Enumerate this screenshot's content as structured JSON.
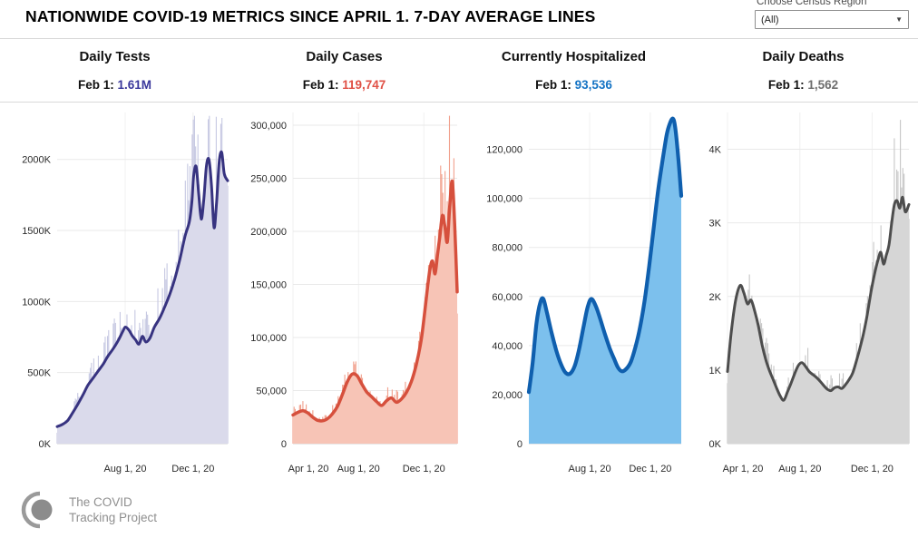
{
  "header": {
    "title": "NATIONWIDE COVID-19 METRICS SINCE APRIL 1. 7-DAY AVERAGE LINES",
    "region_filter": {
      "label": "Choose Census Region",
      "value": "(All)"
    }
  },
  "footer": {
    "logo_line1": "The COVID",
    "logo_line2": "Tracking Project"
  },
  "colors": {
    "separator": "#d9d9d9",
    "axis_text": "#2b2b2b",
    "grid": "#e9e9e9",
    "baseline": "#cfcfcf"
  },
  "chart_data": [
    {
      "type": "area",
      "title": "Daily Tests",
      "annotation_label": "Feb 1:",
      "annotation_value": "1.61M",
      "value_color": "#39379b",
      "line_color": "#373380",
      "fill_color": "#dadaeb",
      "bar_color": "#c6c8e2",
      "unit": "tests (thousands)",
      "ylim": [
        0,
        2330
      ],
      "y_ticks": [
        {
          "v": 0,
          "label": "0K"
        },
        {
          "v": 500,
          "label": "500K"
        },
        {
          "v": 1000,
          "label": "1000K"
        },
        {
          "v": 1500,
          "label": "1500K"
        },
        {
          "v": 2000,
          "label": "2000K"
        }
      ],
      "x_ticks": [
        {
          "f": 0.399,
          "label": "Aug 1, 20"
        },
        {
          "f": 0.797,
          "label": "Dec 1, 20"
        }
      ],
      "daily_bars": true,
      "spikes": [
        {
          "f": 0.8,
          "v": 2280
        },
        {
          "f": 0.935,
          "v": 2300
        },
        {
          "f": 0.96,
          "v": 2250
        }
      ],
      "series": {
        "name": "7-day average",
        "x": [
          0,
          0.03,
          0.06,
          0.09,
          0.12,
          0.15,
          0.18,
          0.21,
          0.24,
          0.27,
          0.3,
          0.33,
          0.36,
          0.385,
          0.4,
          0.42,
          0.44,
          0.46,
          0.48,
          0.5,
          0.52,
          0.545,
          0.57,
          0.6,
          0.63,
          0.66,
          0.69,
          0.72,
          0.75,
          0.775,
          0.79,
          0.8,
          0.815,
          0.83,
          0.845,
          0.86,
          0.875,
          0.89,
          0.905,
          0.92,
          0.935,
          0.95,
          0.965,
          0.98,
          1.0
        ],
        "y": [
          120,
          135,
          160,
          215,
          275,
          340,
          410,
          460,
          510,
          560,
          620,
          670,
          730,
          790,
          820,
          800,
          760,
          730,
          700,
          755,
          715,
          745,
          820,
          880,
          960,
          1050,
          1160,
          1300,
          1460,
          1560,
          1700,
          1880,
          1950,
          1760,
          1580,
          1720,
          1950,
          2000,
          1820,
          1520,
          1700,
          1980,
          2050,
          1900,
          1850
        ]
      }
    },
    {
      "type": "area",
      "title": "Daily Cases",
      "annotation_label": "Feb 1:",
      "annotation_value": "119,747",
      "value_color": "#e05045",
      "line_color": "#d6503d",
      "fill_color": "#f7c4b6",
      "bar_color": "#f1a08c",
      "unit": "cases",
      "ylim": [
        0,
        312000
      ],
      "y_ticks": [
        {
          "v": 0,
          "label": "0"
        },
        {
          "v": 50000,
          "label": "50,000"
        },
        {
          "v": 100000,
          "label": "100,000"
        },
        {
          "v": 150000,
          "label": "150,000"
        },
        {
          "v": 200000,
          "label": "200,000"
        },
        {
          "v": 250000,
          "label": "250,000"
        },
        {
          "v": 300000,
          "label": "300,000"
        }
      ],
      "x_ticks": [
        {
          "f": 0.0,
          "label": "Apr 1, 20"
        },
        {
          "f": 0.399,
          "label": "Aug 1, 20"
        },
        {
          "f": 0.797,
          "label": "Dec 1, 20"
        }
      ],
      "daily_bars": true,
      "spikes": [
        {
          "f": 0.955,
          "v": 310000
        },
        {
          "f": 0.9,
          "v": 262000
        }
      ],
      "series": {
        "name": "7-day average",
        "x": [
          0,
          0.03,
          0.06,
          0.09,
          0.12,
          0.15,
          0.18,
          0.21,
          0.24,
          0.27,
          0.3,
          0.33,
          0.36,
          0.39,
          0.42,
          0.45,
          0.48,
          0.51,
          0.54,
          0.57,
          0.6,
          0.63,
          0.66,
          0.69,
          0.72,
          0.75,
          0.78,
          0.8,
          0.82,
          0.835,
          0.85,
          0.865,
          0.88,
          0.895,
          0.91,
          0.925,
          0.94,
          0.955,
          0.97,
          0.985,
          1.0
        ],
        "y": [
          27000,
          29500,
          31000,
          29000,
          25000,
          22000,
          21500,
          23500,
          28000,
          35000,
          46000,
          58000,
          65500,
          64000,
          56000,
          48500,
          44000,
          39500,
          36000,
          40500,
          43000,
          39000,
          42000,
          48000,
          58000,
          74000,
          97000,
          121000,
          148000,
          165000,
          172000,
          160000,
          178000,
          196000,
          215000,
          205000,
          190000,
          225000,
          247000,
          205000,
          143000
        ]
      }
    },
    {
      "type": "area",
      "title": "Currently Hospitalized",
      "annotation_label": "Feb 1:",
      "annotation_value": "93,536",
      "value_color": "#1473c4",
      "line_color": "#0f5fae",
      "fill_color": "#7cc0ed",
      "bar_color": "#7cc0ed",
      "unit": "patients",
      "ylim": [
        0,
        135000
      ],
      "y_ticks": [
        {
          "v": 0,
          "label": "0"
        },
        {
          "v": 20000,
          "label": "20,000"
        },
        {
          "v": 40000,
          "label": "40,000"
        },
        {
          "v": 60000,
          "label": "60,000"
        },
        {
          "v": 80000,
          "label": "80,000"
        },
        {
          "v": 100000,
          "label": "100,000"
        },
        {
          "v": 120000,
          "label": "120,000"
        }
      ],
      "x_ticks": [
        {
          "f": 0.399,
          "label": "Aug 1, 20"
        },
        {
          "f": 0.797,
          "label": "Dec 1, 20"
        }
      ],
      "daily_bars": false,
      "spikes": [],
      "series": {
        "name": "7-day average",
        "x": [
          0,
          0.025,
          0.05,
          0.075,
          0.095,
          0.12,
          0.15,
          0.18,
          0.21,
          0.24,
          0.27,
          0.3,
          0.33,
          0.36,
          0.385,
          0.41,
          0.44,
          0.47,
          0.5,
          0.53,
          0.56,
          0.585,
          0.61,
          0.64,
          0.67,
          0.7,
          0.73,
          0.76,
          0.79,
          0.82,
          0.85,
          0.88,
          0.905,
          0.925,
          0.945,
          0.96,
          0.98,
          1.0
        ],
        "y": [
          21000,
          33000,
          49000,
          57500,
          59000,
          53000,
          45000,
          38000,
          32500,
          29000,
          28500,
          31500,
          38500,
          48000,
          55500,
          59000,
          56000,
          50500,
          44500,
          39000,
          34500,
          31000,
          29500,
          30500,
          33500,
          39500,
          47500,
          58500,
          72500,
          88500,
          104000,
          116500,
          126000,
          130500,
          132500,
          129000,
          117000,
          101000
        ]
      }
    },
    {
      "type": "area",
      "title": "Daily Deaths",
      "annotation_label": "Feb 1:",
      "annotation_value": "1,562",
      "value_color": "#6e6e6e",
      "line_color": "#4d4d4d",
      "fill_color": "#d6d6d6",
      "bar_color": "#c6c6c6",
      "unit": "deaths (thousands)",
      "ylim": [
        0,
        4500
      ],
      "y_ticks": [
        {
          "v": 0,
          "label": "0K"
        },
        {
          "v": 1000,
          "label": "1K"
        },
        {
          "v": 2000,
          "label": "2K"
        },
        {
          "v": 3000,
          "label": "3K"
        },
        {
          "v": 4000,
          "label": "4K"
        }
      ],
      "x_ticks": [
        {
          "f": 0.0,
          "label": "Apr 1, 20"
        },
        {
          "f": 0.399,
          "label": "Aug 1, 20"
        },
        {
          "f": 0.797,
          "label": "Dec 1, 20"
        }
      ],
      "daily_bars": true,
      "spikes": [
        {
          "f": 0.955,
          "v": 4400
        },
        {
          "f": 0.92,
          "v": 4150
        }
      ],
      "series": {
        "name": "7-day average",
        "x": [
          0,
          0.02,
          0.045,
          0.07,
          0.09,
          0.11,
          0.13,
          0.15,
          0.17,
          0.19,
          0.21,
          0.23,
          0.25,
          0.27,
          0.29,
          0.31,
          0.33,
          0.35,
          0.37,
          0.39,
          0.41,
          0.43,
          0.45,
          0.47,
          0.49,
          0.51,
          0.53,
          0.55,
          0.57,
          0.59,
          0.61,
          0.63,
          0.65,
          0.67,
          0.69,
          0.71,
          0.73,
          0.75,
          0.77,
          0.79,
          0.81,
          0.83,
          0.845,
          0.86,
          0.875,
          0.89,
          0.905,
          0.92,
          0.935,
          0.95,
          0.965,
          0.98,
          1.0
        ],
        "y": [
          980,
          1500,
          1950,
          2150,
          2050,
          1900,
          1950,
          1800,
          1600,
          1350,
          1150,
          1000,
          880,
          760,
          650,
          590,
          700,
          820,
          950,
          1060,
          1100,
          1050,
          980,
          940,
          900,
          850,
          790,
          740,
          720,
          760,
          770,
          750,
          800,
          870,
          960,
          1120,
          1300,
          1500,
          1750,
          2050,
          2300,
          2500,
          2600,
          2440,
          2560,
          2700,
          3000,
          3250,
          3300,
          3200,
          3350,
          3150,
          3250
        ]
      }
    }
  ]
}
